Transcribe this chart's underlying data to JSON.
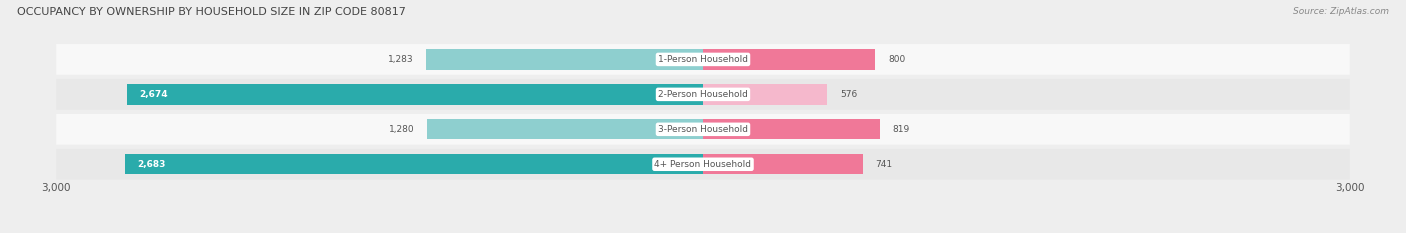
{
  "title": "OCCUPANCY BY OWNERSHIP BY HOUSEHOLD SIZE IN ZIP CODE 80817",
  "source": "Source: ZipAtlas.com",
  "categories": [
    "1-Person Household",
    "2-Person Household",
    "3-Person Household",
    "4+ Person Household"
  ],
  "owner_values": [
    1283,
    2674,
    1280,
    2683
  ],
  "renter_values": [
    800,
    576,
    819,
    741
  ],
  "max_val": 3000,
  "owner_colors": [
    "#8ecfcf",
    "#2aabab",
    "#8ecfcf",
    "#2aabab"
  ],
  "renter_colors": [
    "#f07898",
    "#f5b8cc",
    "#f07898",
    "#f07898"
  ],
  "label_threshold_owner": 1800,
  "background_color": "#eeeeee",
  "row_bg_color": "#f8f8f8",
  "row_bg_dark": "#e8e8e8",
  "title_color": "#444444",
  "source_color": "#888888",
  "tick_label_color": "#555555",
  "legend_owner_color": "#2aabab",
  "legend_renter_color": "#f07898",
  "cat_label_color": "#555555",
  "owner_label_inside_color": "#ffffff",
  "owner_label_outside_color": "#555555",
  "renter_label_color": "#555555"
}
